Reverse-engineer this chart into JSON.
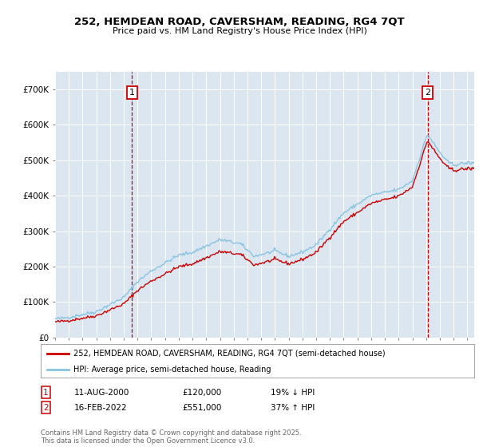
{
  "title": "252, HEMDEAN ROAD, CAVERSHAM, READING, RG4 7QT",
  "subtitle": "Price paid vs. HM Land Registry's House Price Index (HPI)",
  "ylim": [
    0,
    750000
  ],
  "yticks": [
    0,
    100000,
    200000,
    300000,
    400000,
    500000,
    600000,
    700000
  ],
  "ytick_labels": [
    "£0",
    "£100K",
    "£200K",
    "£300K",
    "£400K",
    "£500K",
    "£600K",
    "£700K"
  ],
  "plot_bg_color": "#dce6f1",
  "hpi_color": "#89c4e1",
  "price_color": "#cc0000",
  "t1": 2000.6,
  "t2": 2022.12,
  "p1": 120000,
  "p2": 551000,
  "sale1_date": "11-AUG-2000",
  "sale1_price": "£120,000",
  "sale1_hpi": "19% ↓ HPI",
  "sale2_date": "16-FEB-2022",
  "sale2_price": "£551,000",
  "sale2_hpi": "37% ↑ HPI",
  "legend_line1": "252, HEMDEAN ROAD, CAVERSHAM, READING, RG4 7QT (semi-detached house)",
  "legend_line2": "HPI: Average price, semi-detached house, Reading",
  "footer": "Contains HM Land Registry data © Crown copyright and database right 2025.\nThis data is licensed under the Open Government Licence v3.0."
}
